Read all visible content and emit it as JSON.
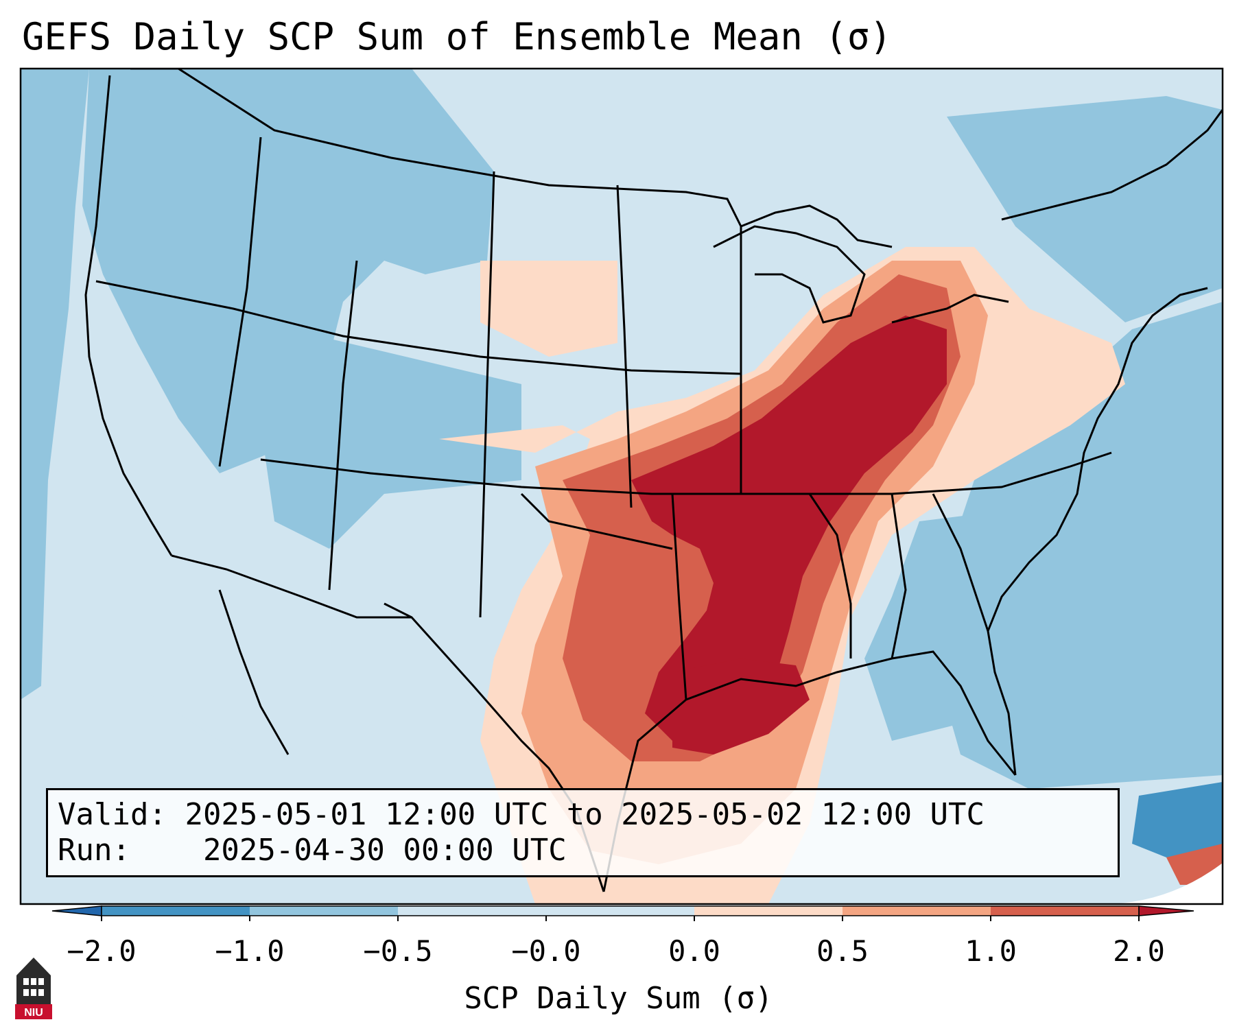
{
  "title": "GEFS Daily SCP Sum of Ensemble Mean (σ)",
  "info": {
    "valid_label": "Valid:",
    "valid_text": "2025-05-01 12:00 UTC to 2025-05-02 12:00 UTC",
    "run_label": "Run:",
    "run_text": "2025-04-30 00:00 UTC"
  },
  "colorbar": {
    "label": "SCP Daily Sum (σ)",
    "ticks": [
      "−2.0",
      "−1.0",
      "−0.5",
      "−0.0",
      "0.0",
      "0.5",
      "1.0",
      "2.0"
    ],
    "colors": [
      "#4393c3",
      "#92c5de",
      "#d1e5f0",
      "#d1e5f0",
      "#fddbc7",
      "#f4a582",
      "#d6604d",
      "#b2182b"
    ],
    "extend": "both"
  },
  "colors": {
    "ocean": "#92c5de",
    "land_low": "#d1e5f0",
    "mid_neg": "#92c5de",
    "strong_neg": "#4393c3",
    "pos_low": "#fddbc7",
    "pos_mid": "#f4a582",
    "pos_high": "#d6604d",
    "pos_max": "#b2182b"
  },
  "logo": {
    "text": "NIU"
  }
}
